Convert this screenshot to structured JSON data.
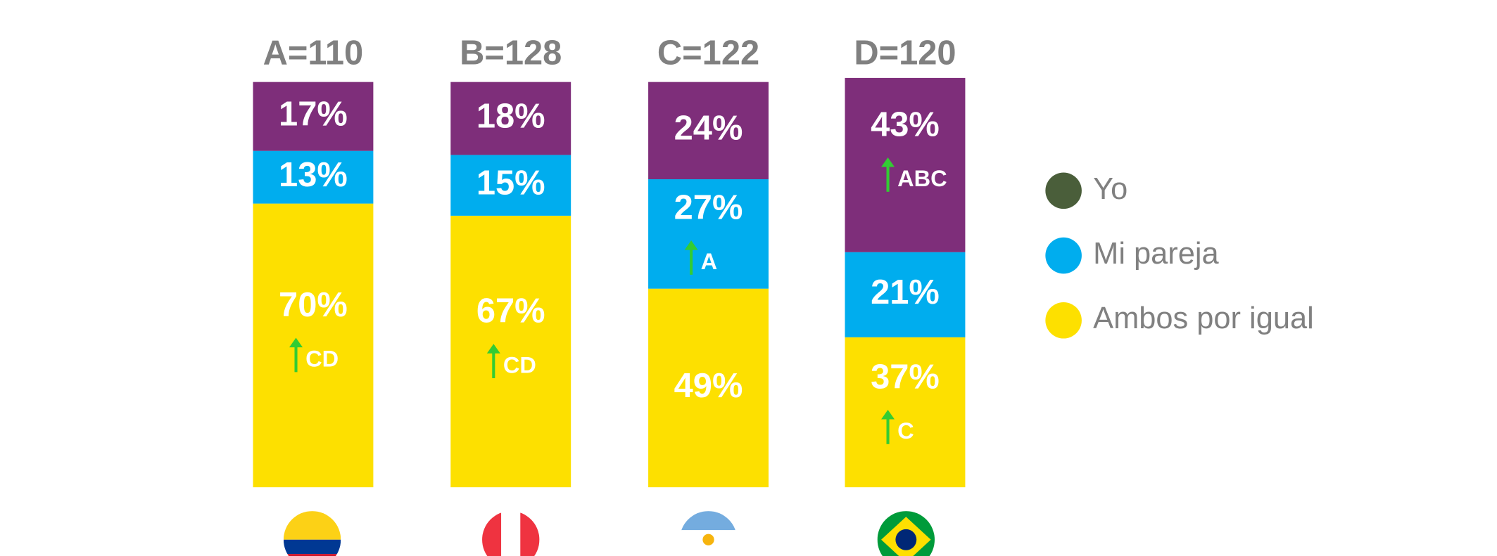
{
  "chart_data": {
    "type": "stacked_bar",
    "categories": [
      "A=110",
      "B=128",
      "C=122",
      "D=120"
    ],
    "series": [
      {
        "name": "Ambos por igual",
        "color": "#fde000",
        "legend_color": "#fde000",
        "values": [
          70,
          67,
          49,
          37
        ],
        "value_labels": [
          "70%",
          "67%",
          "49%",
          "37%"
        ],
        "annotations": [
          "CD",
          "CD",
          null,
          "C"
        ]
      },
      {
        "name": "Mi pareja",
        "color": "#00adee",
        "legend_color": "#00adee",
        "values": [
          13,
          15,
          27,
          21
        ],
        "value_labels": [
          "13%",
          "15%",
          "27%",
          "21%"
        ],
        "annotations": [
          null,
          null,
          "A",
          null
        ]
      },
      {
        "name": "Yo",
        "color": "#7e2e7a",
        "legend_color": "#4a5e3a",
        "values": [
          17,
          18,
          24,
          43
        ],
        "value_labels": [
          "17%",
          "18%",
          "24%",
          "43%"
        ],
        "annotations": [
          null,
          null,
          null,
          "ABC"
        ]
      }
    ],
    "annotation_color": "#33cc33"
  }
}
